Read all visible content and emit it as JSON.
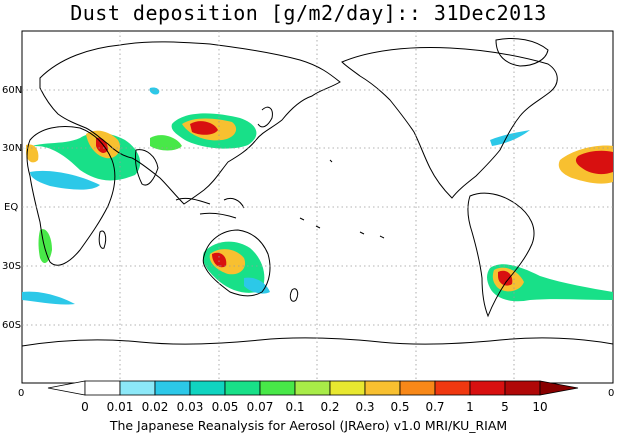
{
  "title": "Dust deposition [g/m2/day]:: 31Dec2013",
  "caption": "The Japanese Reanalysis for Aerosol (JRAero) v1.0 MRI/KU_RIAM",
  "lat_labels": [
    "60N",
    "30N",
    "EQ",
    "30S",
    "60S"
  ],
  "axis_corner_labels": {
    "left": "0",
    "right": "0"
  },
  "colorbar": {
    "labels": [
      "0",
      "0.01",
      "0.02",
      "0.03",
      "0.05",
      "0.07",
      "0.1",
      "0.2",
      "0.3",
      "0.5",
      "0.7",
      "1",
      "5",
      "10"
    ],
    "colors": [
      "#ffffff",
      "#ffffff",
      "#8ce8f8",
      "#2cc8e8",
      "#10d4c0",
      "#18e088",
      "#48e848",
      "#a8ec48",
      "#e8e830",
      "#f8c030",
      "#f88818",
      "#f03810",
      "#d81010",
      "#b00808",
      "#880000"
    ]
  },
  "map_colors": {
    "coast": "#000000",
    "grid": "#9a9a9a"
  }
}
